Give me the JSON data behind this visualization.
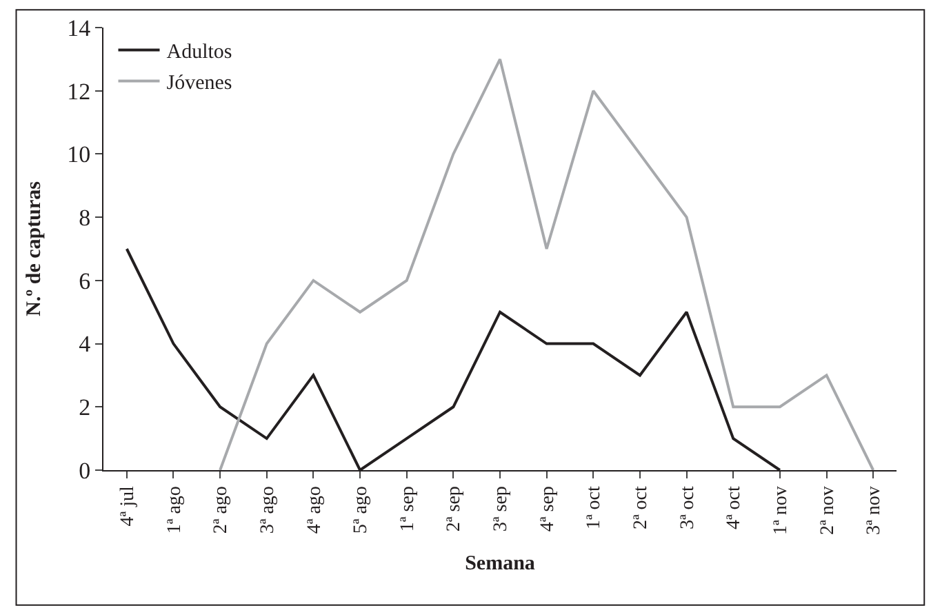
{
  "chart_data": {
    "type": "line",
    "xlabel": "Semana",
    "ylabel": "N.º de capturas",
    "categories": [
      "4ª jul",
      "1ª ago",
      "2ª ago",
      "3ª ago",
      "4ª ago",
      "5ª ago",
      "1ª sep",
      "2ª sep",
      "3ª sep",
      "4ª sep",
      "1ª oct",
      "2ª oct",
      "3ª oct",
      "4ª oct",
      "1ª nov",
      "2ª nov",
      "3ª nov"
    ],
    "series": [
      {
        "name": "Adultos",
        "color": "#231f20",
        "values": [
          7,
          4,
          2,
          1,
          3,
          0,
          1,
          2,
          5,
          4,
          4,
          3,
          5,
          1,
          0,
          null,
          null
        ]
      },
      {
        "name": "Jóvenes",
        "color": "#a7a9ac",
        "values": [
          null,
          null,
          0,
          4,
          6,
          5,
          6,
          10,
          13,
          7,
          12,
          10,
          8,
          2,
          2,
          3,
          0
        ]
      }
    ],
    "ylim": [
      0,
      14
    ],
    "yticks": [
      0,
      2,
      4,
      6,
      8,
      10,
      12,
      14
    ],
    "legend": "top left",
    "marker": "none",
    "line_style": "solid"
  }
}
